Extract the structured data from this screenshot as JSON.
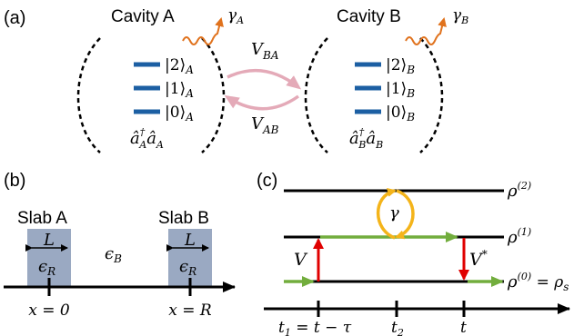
{
  "panel_a": {
    "label": "(a)",
    "cavity_a": {
      "title": "Cavity A",
      "levels": [
        "|2⟩",
        "|1⟩",
        "|0⟩"
      ],
      "level_subscript": "A",
      "operator": "â",
      "operator_dagger": "†",
      "operator_subscript": "A",
      "decay": "γ",
      "decay_subscript": "A"
    },
    "cavity_b": {
      "title": "Cavity B",
      "levels": [
        "|2⟩",
        "|1⟩",
        "|0⟩"
      ],
      "level_subscript": "B",
      "operator": "â",
      "operator_dagger": "†",
      "operator_subscript": "B",
      "decay": "γ",
      "decay_subscript": "B"
    },
    "coupling_ba": {
      "symbol": "V",
      "subscript": "BA"
    },
    "coupling_ab": {
      "symbol": "V",
      "subscript": "AB"
    }
  },
  "panel_b": {
    "label": "(b)",
    "slab_a": "Slab A",
    "slab_b": "Slab B",
    "width_label": "L",
    "slab_eps": "ϵ",
    "slab_eps_sub": "R",
    "bg_eps": "ϵ",
    "bg_eps_sub": "B",
    "pos_a": "x = 0",
    "pos_b": "x = R"
  },
  "panel_c": {
    "label": "(c)",
    "rho": "ρ",
    "rho_2": "(2)",
    "rho_1": "(1)",
    "rho_0": "(0)",
    "rho_s_eq": " = ρ",
    "rho_s_sub": "s",
    "gamma": "γ",
    "v": "V",
    "v_star": "V",
    "v_star_sup": "*",
    "t1": "t",
    "t1_sub": "1",
    "t1_eq": " = t − τ",
    "t2": "t",
    "t2_sub": "2",
    "t": "t"
  },
  "colors": {
    "level_blue": "#1c5fa3",
    "photon_orange": "#e0721d",
    "coupling_pink": "#e4aab8",
    "slab_fill": "#9aa9c2",
    "red_arrow": "#e00000",
    "green_path": "#72ad3d",
    "gamma_yellow": "#f4b41a"
  }
}
